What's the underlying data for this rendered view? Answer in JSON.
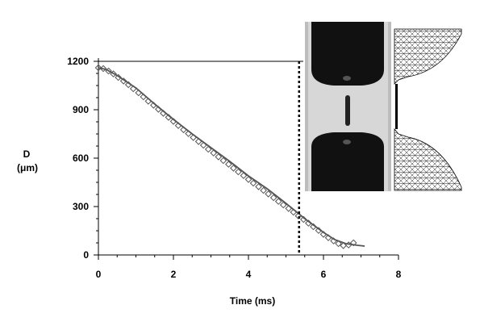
{
  "chart_data": {
    "type": "scatter",
    "xlabel": "Time (ms)",
    "ylabel_line1": "D",
    "ylabel_line2": "(μm)",
    "xlim": [
      0,
      8
    ],
    "ylim": [
      0,
      1200
    ],
    "x_ticks": [
      0,
      2,
      4,
      6,
      8
    ],
    "y_ticks": [
      0,
      300,
      600,
      900,
      1200
    ],
    "vertical_marker_x": 5.35,
    "series": [
      {
        "marker": "diamond-open",
        "x": [
          0.0,
          0.13,
          0.27,
          0.4,
          0.53,
          0.67,
          0.8,
          0.93,
          1.07,
          1.2,
          1.33,
          1.47,
          1.6,
          1.73,
          1.87,
          2.0,
          2.13,
          2.27,
          2.4,
          2.53,
          2.67,
          2.8,
          2.93,
          3.07,
          3.2,
          3.33,
          3.47,
          3.6,
          3.73,
          3.87,
          4.0,
          4.13,
          4.27,
          4.4,
          4.53,
          4.67,
          4.8,
          4.93,
          5.07,
          5.2,
          5.33,
          5.47,
          5.6,
          5.73,
          5.87,
          6.0,
          6.13,
          6.27,
          6.4,
          6.53,
          6.67,
          6.8
        ],
        "y": [
          1160,
          1155,
          1140,
          1122,
          1100,
          1078,
          1055,
          1030,
          1005,
          980,
          953,
          928,
          903,
          878,
          853,
          828,
          802,
          776,
          752,
          728,
          703,
          680,
          655,
          632,
          608,
          585,
          562,
          538,
          515,
          492,
          468,
          445,
          423,
          400,
          378,
          355,
          332,
          310,
          288,
          265,
          242,
          220,
          197,
          175,
          152,
          128,
          107,
          87,
          70,
          58,
          62,
          75
        ]
      },
      {
        "marker": "line",
        "x": [
          0.0,
          0.2,
          0.5,
          1.0,
          1.5,
          2.0,
          2.5,
          3.0,
          3.5,
          4.0,
          4.5,
          5.0,
          5.5,
          6.0,
          6.3,
          6.6,
          6.9,
          7.1
        ],
        "y": [
          1160,
          1150,
          1112,
          1035,
          935,
          840,
          750,
          665,
          580,
          490,
          410,
          320,
          225,
          140,
          95,
          70,
          60,
          55
        ]
      }
    ]
  }
}
